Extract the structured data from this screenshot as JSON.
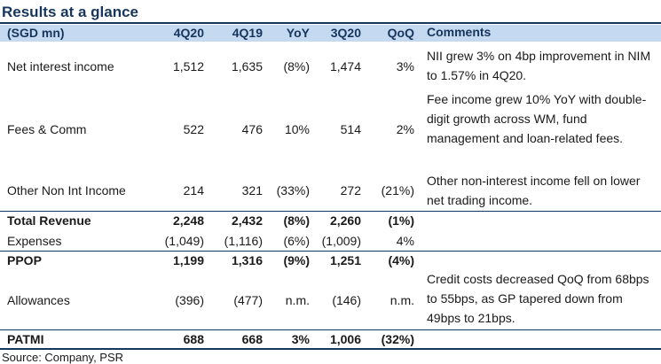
{
  "title": "Results at a glance",
  "headers": {
    "label": "(SGD mn)",
    "q4_20": "4Q20",
    "q4_19": "4Q19",
    "yoy": "YoY",
    "q3_20": "3Q20",
    "qoq": "QoQ",
    "comments": "Comments"
  },
  "rows": [
    {
      "label": "Net interest income",
      "q4_20": "1,512",
      "q4_19": "1,635",
      "yoy": "(8%)",
      "q3_20": "1,474",
      "qoq": "3%",
      "comment": "NII grew 3% on 4bp improvement in NIM to 1.57% in 4Q20."
    },
    {
      "label": "Fees & Comm",
      "q4_20": "522",
      "q4_19": "476",
      "yoy": "10%",
      "q3_20": "514",
      "qoq": "2%",
      "comment": "Fee income grew 10% YoY with double-digit growth across WM, fund management and loan-related fees."
    },
    {
      "label": "Other Non Int Income",
      "q4_20": "214",
      "q4_19": "321",
      "yoy": "(33%)",
      "q3_20": "272",
      "qoq": "(21%)",
      "comment": "Other non-interest income fell on lower net trading income."
    },
    {
      "label": "Total Revenue",
      "q4_20": "2,248",
      "q4_19": "2,432",
      "yoy": "(8%)",
      "q3_20": "2,260",
      "qoq": "(1%)",
      "comment": ""
    },
    {
      "label": "Expenses",
      "q4_20": "(1,049)",
      "q4_19": "(1,116)",
      "yoy": "(6%)",
      "q3_20": "(1,009)",
      "qoq": "4%",
      "comment": ""
    },
    {
      "label": "PPOP",
      "q4_20": "1,199",
      "q4_19": "1,316",
      "yoy": "(9%)",
      "q3_20": "1,251",
      "qoq": "(4%)",
      "comment": ""
    },
    {
      "label": "Allowances",
      "q4_20": "(396)",
      "q4_19": "(477)",
      "yoy": "n.m.",
      "q3_20": "(146)",
      "qoq": "n.m.",
      "comment": "Credit costs decreased QoQ from 68bps to 55bps, as GP tapered down from 49bps to 21bps."
    },
    {
      "label": "PATMI",
      "q4_20": "688",
      "q4_19": "668",
      "yoy": "3%",
      "q3_20": "1,006",
      "qoq": "(32%)",
      "comment": ""
    }
  ],
  "source": "Source: Company, PSR"
}
